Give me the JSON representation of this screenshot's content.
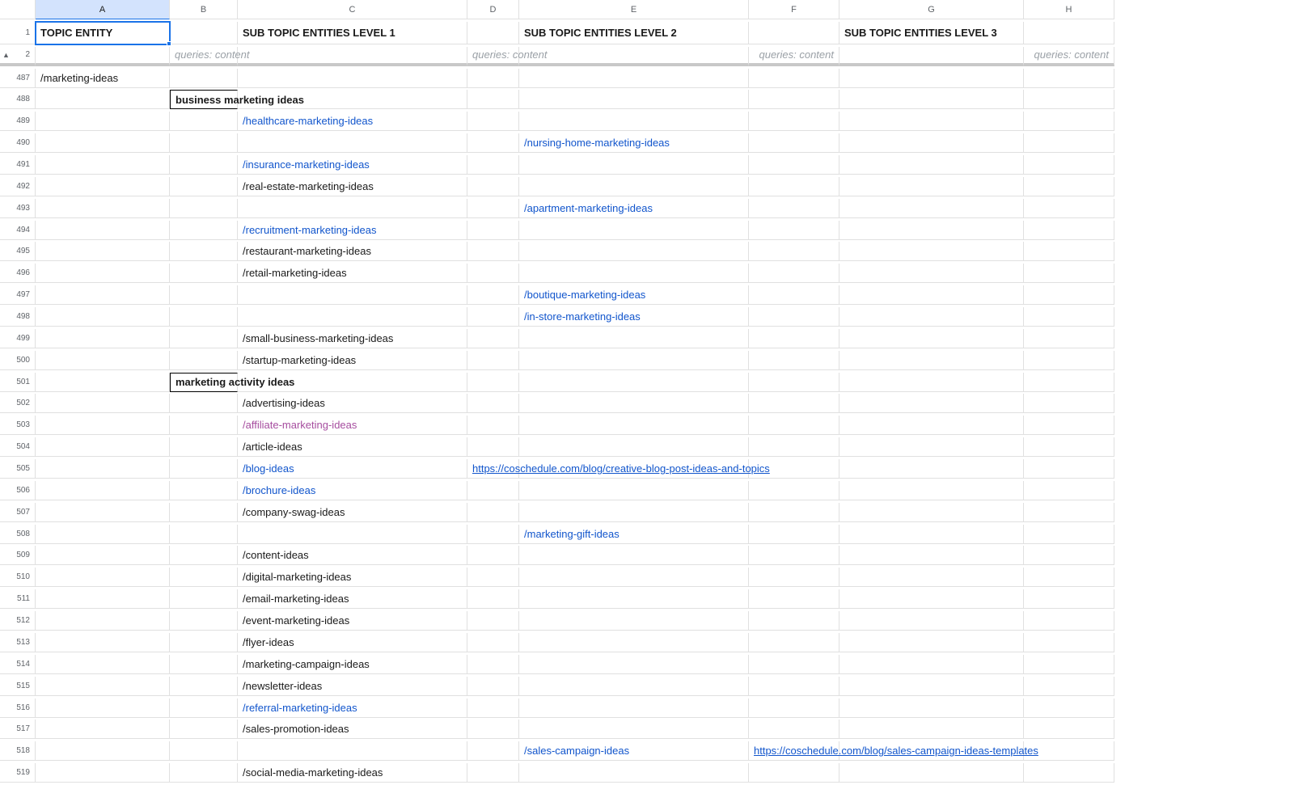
{
  "columns": [
    {
      "letter": "A",
      "selected": true
    },
    {
      "letter": "B",
      "selected": false
    },
    {
      "letter": "C",
      "selected": false
    },
    {
      "letter": "D",
      "selected": false
    },
    {
      "letter": "E",
      "selected": false
    },
    {
      "letter": "F",
      "selected": false
    },
    {
      "letter": "G",
      "selected": false
    },
    {
      "letter": "H",
      "selected": false
    }
  ],
  "headerRow": {
    "num": "1",
    "cells": {
      "A": {
        "text": "TOPIC ENTITY",
        "bold": true,
        "selected": true
      },
      "C": {
        "text": "SUB TOPIC ENTITIES LEVEL 1",
        "bold": true
      },
      "E": {
        "text": "SUB TOPIC ENTITIES LEVEL 2",
        "bold": true
      },
      "G": {
        "text": "SUB TOPIC ENTITIES LEVEL 3",
        "bold": true
      }
    }
  },
  "subHeaderRow": {
    "num": "2",
    "cells": {
      "B": {
        "text": "queries: content",
        "italic": true
      },
      "D": {
        "text": "queries: content",
        "italic": true
      },
      "F": {
        "text": "queries: content",
        "italic": true,
        "align": "right"
      },
      "H": {
        "text": "queries: content",
        "italic": true,
        "align": "right"
      }
    }
  },
  "dataRows": [
    {
      "num": "487",
      "A": {
        "text": "/marketing-ideas"
      }
    },
    {
      "num": "488",
      "B": {
        "text": "business marketing ideas",
        "bold": true,
        "boxed": true
      }
    },
    {
      "num": "489",
      "C": {
        "text": "/healthcare-marketing-ideas",
        "link": "blue"
      }
    },
    {
      "num": "490",
      "E": {
        "text": "/nursing-home-marketing-ideas",
        "link": "blue"
      }
    },
    {
      "num": "491",
      "C": {
        "text": "/insurance-marketing-ideas",
        "link": "blue"
      }
    },
    {
      "num": "492",
      "C": {
        "text": "/real-estate-marketing-ideas"
      }
    },
    {
      "num": "493",
      "E": {
        "text": "/apartment-marketing-ideas",
        "link": "blue"
      }
    },
    {
      "num": "494",
      "C": {
        "text": "/recruitment-marketing-ideas",
        "link": "blue"
      }
    },
    {
      "num": "495",
      "C": {
        "text": "/restaurant-marketing-ideas"
      }
    },
    {
      "num": "496",
      "C": {
        "text": "/retail-marketing-ideas"
      }
    },
    {
      "num": "497",
      "E": {
        "text": "/boutique-marketing-ideas",
        "link": "blue"
      }
    },
    {
      "num": "498",
      "E": {
        "text": "/in-store-marketing-ideas",
        "link": "blue"
      }
    },
    {
      "num": "499",
      "C": {
        "text": "/small-business-marketing-ideas"
      }
    },
    {
      "num": "500",
      "C": {
        "text": "/startup-marketing-ideas"
      }
    },
    {
      "num": "501",
      "B": {
        "text": "marketing activity ideas",
        "bold": true,
        "boxed": true
      }
    },
    {
      "num": "502",
      "C": {
        "text": "/advertising-ideas"
      }
    },
    {
      "num": "503",
      "C": {
        "text": "/affiliate-marketing-ideas",
        "link": "purple"
      }
    },
    {
      "num": "504",
      "C": {
        "text": "/article-ideas"
      }
    },
    {
      "num": "505",
      "C": {
        "text": "/blog-ideas",
        "link": "blue"
      },
      "D": {
        "text": "https://coschedule.com/blog/creative-blog-post-ideas-and-topics",
        "link": "blue",
        "underline": true,
        "overflow": true
      }
    },
    {
      "num": "506",
      "C": {
        "text": "/brochure-ideas",
        "link": "blue"
      }
    },
    {
      "num": "507",
      "C": {
        "text": "/company-swag-ideas"
      }
    },
    {
      "num": "508",
      "E": {
        "text": "/marketing-gift-ideas",
        "link": "blue"
      }
    },
    {
      "num": "509",
      "C": {
        "text": "/content-ideas"
      }
    },
    {
      "num": "510",
      "C": {
        "text": "/digital-marketing-ideas"
      }
    },
    {
      "num": "511",
      "C": {
        "text": "/email-marketing-ideas"
      }
    },
    {
      "num": "512",
      "C": {
        "text": "/event-marketing-ideas"
      }
    },
    {
      "num": "513",
      "C": {
        "text": "/flyer-ideas"
      }
    },
    {
      "num": "514",
      "C": {
        "text": "/marketing-campaign-ideas"
      }
    },
    {
      "num": "515",
      "C": {
        "text": "/newsletter-ideas"
      }
    },
    {
      "num": "516",
      "C": {
        "text": "/referral-marketing-ideas",
        "link": "blue"
      }
    },
    {
      "num": "517",
      "C": {
        "text": "/sales-promotion-ideas"
      }
    },
    {
      "num": "518",
      "E": {
        "text": "/sales-campaign-ideas",
        "link": "blue"
      },
      "F": {
        "text": "https://coschedule.com/blog/sales-campaign-ideas-templates",
        "link": "blue",
        "underline": true,
        "overflow": true
      }
    },
    {
      "num": "519",
      "C": {
        "text": "/social-media-marketing-ideas"
      }
    }
  ],
  "colors": {
    "link_blue": "#1155cc",
    "link_purple": "#a64d9f",
    "selection_blue": "#1a73e8",
    "col_header_selected_bg": "#d3e3fd",
    "grid_line": "#e0e0e0",
    "text": "#1a1a1a",
    "muted_text": "#9aa0a6",
    "thick_divider": "#c8c8c8"
  }
}
